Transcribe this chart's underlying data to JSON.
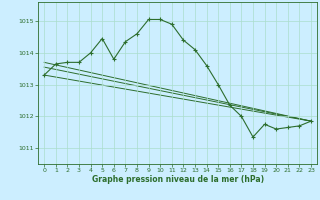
{
  "background_color": "#cceeff",
  "grid_color": "#aaddcc",
  "line_color": "#2d6e2d",
  "marker_color": "#2d6e2d",
  "xlabel": "Graphe pression niveau de la mer (hPa)",
  "xlim": [
    -0.5,
    23.5
  ],
  "ylim": [
    1010.5,
    1015.6
  ],
  "yticks": [
    1011,
    1012,
    1013,
    1014,
    1015
  ],
  "xticks": [
    0,
    1,
    2,
    3,
    4,
    5,
    6,
    7,
    8,
    9,
    10,
    11,
    12,
    13,
    14,
    15,
    16,
    17,
    18,
    19,
    20,
    21,
    22,
    23
  ],
  "main_x": [
    0,
    1,
    2,
    3,
    4,
    5,
    6,
    7,
    8,
    9,
    10,
    11,
    12,
    13,
    14,
    15,
    16,
    17,
    18,
    19,
    20,
    21,
    22,
    23
  ],
  "main_y": [
    1013.3,
    1013.65,
    1013.7,
    1013.7,
    1014.0,
    1014.45,
    1013.8,
    1014.35,
    1014.6,
    1015.05,
    1015.05,
    1014.9,
    1014.4,
    1014.1,
    1013.6,
    1013.0,
    1012.35,
    1012.0,
    1011.35,
    1011.75,
    1011.6,
    1011.65,
    1011.7,
    1011.85
  ],
  "trend_lines": [
    {
      "x": [
        0,
        23
      ],
      "y": [
        1013.7,
        1011.85
      ]
    },
    {
      "x": [
        0,
        23
      ],
      "y": [
        1013.55,
        1011.85
      ]
    },
    {
      "x": [
        0,
        23
      ],
      "y": [
        1013.3,
        1011.85
      ]
    }
  ],
  "figsize": [
    3.2,
    2.0
  ],
  "dpi": 100
}
